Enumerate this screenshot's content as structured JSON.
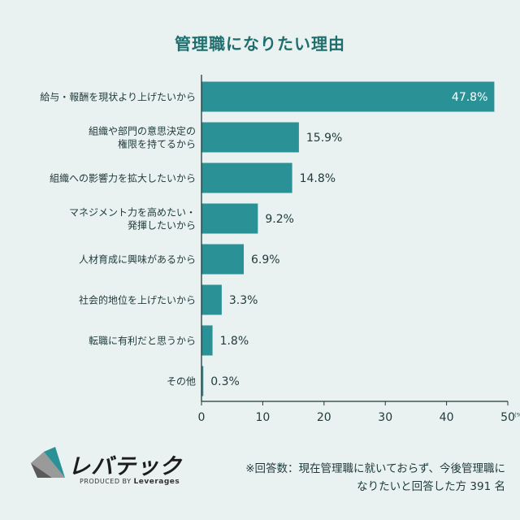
{
  "chart_data": {
    "type": "bar",
    "orientation": "horizontal",
    "title": "管理職になりたい理由",
    "categories": [
      [
        "給与・報酬を現状より上げたいから"
      ],
      [
        "組織や部門の意思決定の",
        "権限を持てるから"
      ],
      [
        "組織への影響力を拡大したいから"
      ],
      [
        "マネジメント力を高めたい・",
        "発揮したいから"
      ],
      [
        "人材育成に興味があるから"
      ],
      [
        "社会的地位を上げたいから"
      ],
      [
        "転職に有利だと思うから"
      ],
      [
        "その他"
      ]
    ],
    "values": [
      47.8,
      15.9,
      14.8,
      9.2,
      6.9,
      3.3,
      1.8,
      0.3
    ],
    "value_labels": [
      "47.8%",
      "15.9%",
      "14.8%",
      "9.2%",
      "6.9%",
      "3.3%",
      "1.8%",
      "0.3%"
    ],
    "xlim": [
      0,
      50
    ],
    "xticks": [
      0,
      10,
      20,
      30,
      40,
      50
    ],
    "unit_label": "(%)",
    "bar_color": "#2a9296",
    "grid": false
  },
  "logo": {
    "name": "レバテック",
    "produced_by": "PRODUCED BY",
    "brand": "Leverages"
  },
  "footnote": {
    "line1": "※回答数：現在管理職に就いておらず、今後管理職に",
    "line2": "なりたいと回答した方 391 名"
  }
}
